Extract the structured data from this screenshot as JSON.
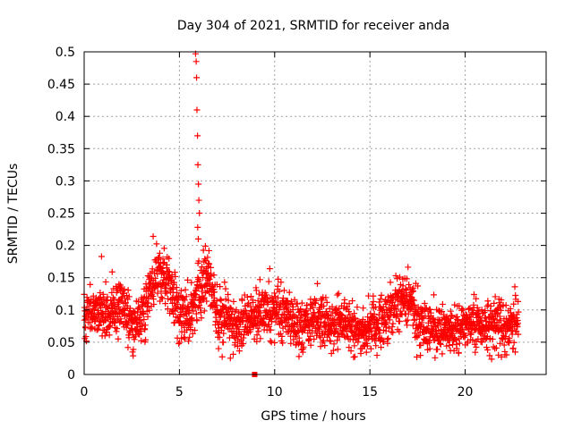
{
  "chart_data": {
    "type": "scatter",
    "title": "Day 304 of 2021, SRMTID for receiver anda",
    "xlabel": "GPS time / hours",
    "ylabel": "SRMTID / TECUs",
    "xlim": [
      0,
      24.25
    ],
    "ylim": [
      0,
      0.5
    ],
    "xticks": [
      0,
      5,
      10,
      15,
      20
    ],
    "xtick_labels": [
      "0",
      "5",
      "10",
      "15",
      "20"
    ],
    "yticks": [
      0,
      0.05,
      0.1,
      0.15,
      0.2,
      0.25,
      0.3,
      0.35,
      0.4,
      0.45,
      0.5
    ],
    "ytick_labels": [
      "0",
      "0.05",
      "0.1",
      "0.15",
      "0.2",
      "0.25",
      "0.3",
      "0.35",
      "0.4",
      "0.45",
      "0.5"
    ],
    "grid": true,
    "marker": "+",
    "color": "#ff0000",
    "trend": {
      "x": [
        0,
        0.5,
        1,
        1.5,
        2,
        2.5,
        3,
        3.5,
        4,
        4.5,
        5,
        5.5,
        6,
        6.5,
        7,
        7.5,
        8,
        8.5,
        9,
        9.5,
        10,
        10.5,
        11,
        11.5,
        12,
        12.5,
        13,
        13.5,
        14,
        14.5,
        15,
        15.5,
        16,
        16.5,
        17,
        17.5,
        18,
        18.5,
        19,
        19.5,
        20,
        20.5,
        21,
        21.5,
        22,
        22.5,
        22.8
      ],
      "y": [
        0.09,
        0.1,
        0.095,
        0.1,
        0.11,
        0.075,
        0.09,
        0.13,
        0.16,
        0.14,
        0.09,
        0.09,
        0.13,
        0.15,
        0.09,
        0.09,
        0.08,
        0.08,
        0.09,
        0.1,
        0.1,
        0.09,
        0.08,
        0.07,
        0.085,
        0.09,
        0.075,
        0.08,
        0.07,
        0.07,
        0.075,
        0.08,
        0.095,
        0.11,
        0.12,
        0.08,
        0.07,
        0.07,
        0.07,
        0.07,
        0.08,
        0.08,
        0.075,
        0.075,
        0.07,
        0.075,
        0.08
      ]
    },
    "scatter_sigma": 0.02,
    "spike_points": {
      "x": [
        5.85,
        5.88,
        5.9,
        5.92,
        5.95,
        5.97,
        6.0,
        6.02,
        6.05,
        5.96,
        5.99
      ],
      "y": [
        0.497,
        0.485,
        0.46,
        0.41,
        0.37,
        0.325,
        0.295,
        0.27,
        0.25,
        0.228,
        0.21
      ]
    },
    "outlier_points": {
      "x": [
        8.95
      ],
      "y": [
        0.0
      ]
    }
  }
}
